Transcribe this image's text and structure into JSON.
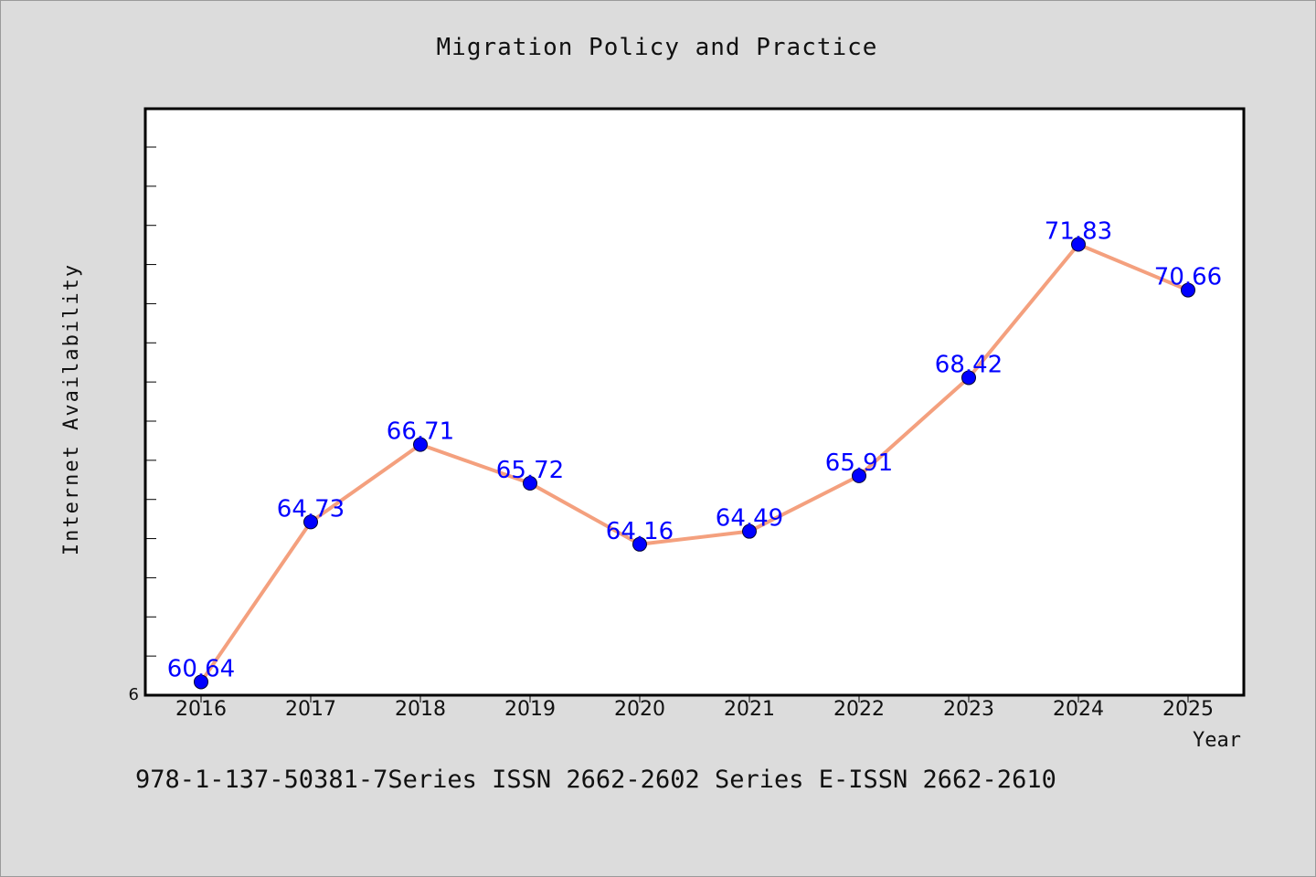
{
  "chart_data": {
    "type": "line",
    "title": "Migration Policy and Practice",
    "xlabel": "Year",
    "ylabel": "Internet Availability",
    "x": [
      "2016",
      "2017",
      "2018",
      "2019",
      "2020",
      "2021",
      "2022",
      "2023",
      "2024",
      "2025"
    ],
    "series": [
      {
        "values": [
          60.64,
          64.73,
          66.71,
          65.72,
          64.16,
          64.49,
          65.91,
          68.42,
          71.83,
          70.66
        ],
        "labels": [
          "60.64",
          "64.73",
          "66.71",
          "65.72",
          "64.16",
          "64.49",
          "65.91",
          "68.42",
          "71.83",
          "70.66"
        ]
      }
    ],
    "ylim": [
      60.3,
      75.3
    ],
    "y_tick_label": "6",
    "grid": false,
    "colors": {
      "line": "#f4a07e",
      "marker": "#0000ff",
      "data_label": "#0000ff",
      "plot_bg": "#ffffff",
      "page_bg": "#dcdcdc"
    }
  },
  "footer": "978-1-137-50381-7Series ISSN 2662-2602 Series E-ISSN 2662-2610"
}
